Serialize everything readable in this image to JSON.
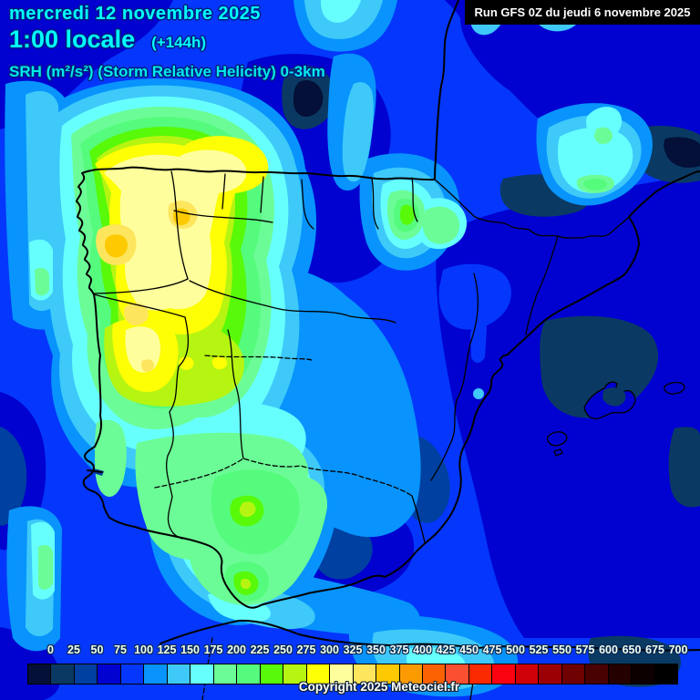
{
  "header": {
    "date_line": "mercredi 12 novembre 2025",
    "time_line": "1:00 locale",
    "run_offset": "(+144h)",
    "param_line": "SRH (m²/s²) (Storm Relative Helicity) 0-3km",
    "text_color": "#00ffff"
  },
  "run_badge": {
    "label": "Run GFS 0Z du jeudi 6 novembre 2025",
    "background": "#000000",
    "text_color": "#ffffff"
  },
  "legend": {
    "boundary_labels": [
      "0",
      "25",
      "50",
      "75",
      "100",
      "125",
      "150",
      "175",
      "200",
      "225",
      "250",
      "275",
      "300",
      "325",
      "350",
      "375",
      "400",
      "425",
      "450",
      "475",
      "500",
      "525",
      "550",
      "575",
      "600",
      "650",
      "675",
      "700"
    ],
    "swatch_colors": [
      "#041038",
      "#0a3a64",
      "#0040a0",
      "#0101d0",
      "#0437fb",
      "#0894fc",
      "#3ec9f9",
      "#66fffe",
      "#6cfc97",
      "#55fb7d",
      "#58f909",
      "#b6f511",
      "#fefe04",
      "#fefe9c",
      "#fde55e",
      "#fdca01",
      "#fc9b01",
      "#fc6201",
      "#fb4f31",
      "#fb2a01",
      "#fb0210",
      "#d00108",
      "#9b0104",
      "#6f0103",
      "#4a0101",
      "#240001",
      "#0d0000",
      "#000000"
    ]
  },
  "footer": {
    "copyright": "Copyright 2025 Meteociel.fr"
  }
}
